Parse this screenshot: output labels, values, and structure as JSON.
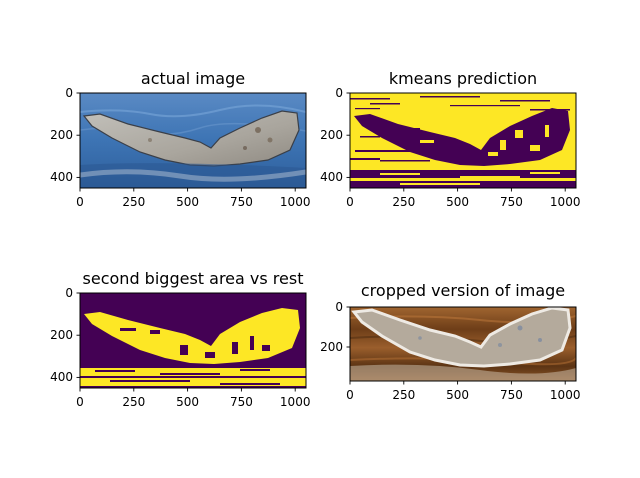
{
  "chart_data": [
    {
      "type": "image",
      "title": "actual image",
      "xlim": [
        0,
        1050
      ],
      "ylim": [
        450,
        0
      ],
      "xticks": [
        0,
        250,
        500,
        750,
        1000
      ],
      "yticks": [
        0,
        200,
        400
      ],
      "xtick_labels": [
        "0",
        "250",
        "500",
        "750",
        "1000"
      ],
      "ytick_labels": [
        "0",
        "200",
        "400"
      ],
      "content": "photo of a humpback whale tail fluke above blue ocean water",
      "colors": {
        "water": "#3d74b4",
        "water_light": "#6b9ad0",
        "fluke": "#aaa7a0",
        "fluke_dark": "#505560",
        "foam": "#dbe3ec"
      }
    },
    {
      "type": "image",
      "title": "kmeans prediction",
      "xlim": [
        0,
        1050
      ],
      "ylim": [
        450,
        0
      ],
      "xticks": [
        0,
        250,
        500,
        750,
        1000
      ],
      "yticks": [
        0,
        200,
        400
      ],
      "xtick_labels": [
        "0",
        "250",
        "500",
        "750",
        "1000"
      ],
      "ytick_labels": [
        "0",
        "200",
        "400"
      ],
      "content": "binary cluster map, yellow background with dark purple fluke and wave regions",
      "colors": {
        "cluster_0": "#440154",
        "cluster_1": "#fde725"
      }
    },
    {
      "type": "image",
      "title": "second biggest area vs rest",
      "xlim": [
        0,
        1050
      ],
      "ylim": [
        450,
        0
      ],
      "xticks": [
        0,
        250,
        500,
        750,
        1000
      ],
      "yticks": [
        0,
        200,
        400
      ],
      "xtick_labels": [
        "0",
        "250",
        "500",
        "750",
        "1000"
      ],
      "ytick_labels": [
        "0",
        "200",
        "400"
      ],
      "content": "binary mask, yellow fluke region on dark purple background",
      "colors": {
        "rest": "#440154",
        "area": "#fde725"
      }
    },
    {
      "type": "image",
      "title": "cropped version of image",
      "xlim": [
        0,
        1050
      ],
      "ylim": [
        370,
        0
      ],
      "xticks": [
        0,
        250,
        500,
        750,
        1000
      ],
      "yticks": [
        0,
        200
      ],
      "xtick_labels": [
        "0",
        "250",
        "500",
        "750",
        "1000"
      ],
      "ytick_labels": [
        "0",
        "200"
      ],
      "content": "cropped fluke with brown background",
      "colors": {
        "background": "#8a5426",
        "background_dark": "#5a3212",
        "fluke": "#b4aa9c",
        "fluke_edge": "#eeeae4"
      }
    }
  ]
}
